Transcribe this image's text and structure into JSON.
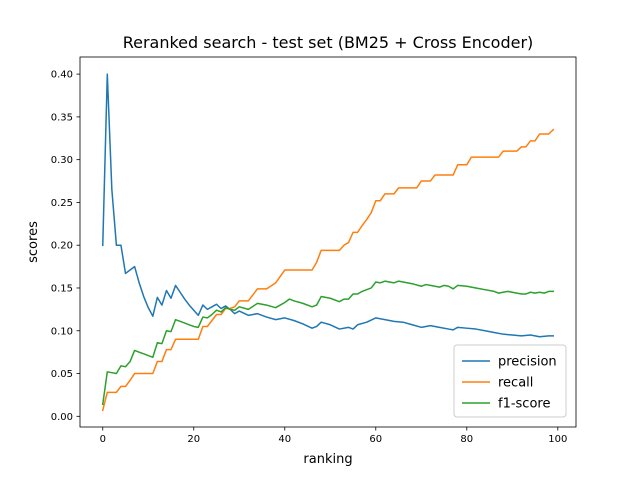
{
  "chart_data": {
    "type": "line",
    "title": "Reranked search - test set (BM25 + Cross Encoder)",
    "xlabel": "ranking",
    "ylabel": "scores",
    "xlim": [
      -5,
      104
    ],
    "ylim": [
      -0.0125,
      0.42
    ],
    "xticks": [
      0,
      20,
      40,
      60,
      80,
      100
    ],
    "xtick_labels": [
      "0",
      "20",
      "40",
      "60",
      "80",
      "100"
    ],
    "yticks": [
      0,
      0.05,
      0.1,
      0.15,
      0.2,
      0.25,
      0.3,
      0.35,
      0.4
    ],
    "ytick_labels": [
      "0.00",
      "0.05",
      "0.10",
      "0.15",
      "0.20",
      "0.25",
      "0.30",
      "0.35",
      "0.40"
    ],
    "grid": false,
    "legend_position": "lower-right",
    "series": [
      {
        "name": "precision",
        "color": "#1f77b4",
        "points": [
          [
            0,
            0.2
          ],
          [
            1,
            0.4
          ],
          [
            2,
            0.265
          ],
          [
            3,
            0.2
          ],
          [
            4,
            0.2
          ],
          [
            5,
            0.167
          ],
          [
            6,
            0.171
          ],
          [
            7,
            0.175
          ],
          [
            8,
            0.156
          ],
          [
            9,
            0.14
          ],
          [
            10,
            0.127
          ],
          [
            11,
            0.117
          ],
          [
            12,
            0.139
          ],
          [
            13,
            0.13
          ],
          [
            14,
            0.147
          ],
          [
            15,
            0.138
          ],
          [
            16,
            0.153
          ],
          [
            17,
            0.145
          ],
          [
            18,
            0.137
          ],
          [
            19,
            0.13
          ],
          [
            20,
            0.124
          ],
          [
            21,
            0.118
          ],
          [
            22,
            0.13
          ],
          [
            23,
            0.125
          ],
          [
            24,
            0.128
          ],
          [
            25,
            0.131
          ],
          [
            26,
            0.126
          ],
          [
            27,
            0.129
          ],
          [
            28,
            0.125
          ],
          [
            29,
            0.12
          ],
          [
            30,
            0.123
          ],
          [
            32,
            0.118
          ],
          [
            34,
            0.12
          ],
          [
            36,
            0.116
          ],
          [
            38,
            0.113
          ],
          [
            40,
            0.115
          ],
          [
            42,
            0.112
          ],
          [
            44,
            0.108
          ],
          [
            46,
            0.103
          ],
          [
            47,
            0.105
          ],
          [
            48,
            0.11
          ],
          [
            50,
            0.107
          ],
          [
            52,
            0.102
          ],
          [
            54,
            0.104
          ],
          [
            55,
            0.102
          ],
          [
            56,
            0.107
          ],
          [
            58,
            0.11
          ],
          [
            60,
            0.115
          ],
          [
            62,
            0.113
          ],
          [
            64,
            0.111
          ],
          [
            66,
            0.11
          ],
          [
            68,
            0.107
          ],
          [
            70,
            0.104
          ],
          [
            72,
            0.106
          ],
          [
            74,
            0.104
          ],
          [
            76,
            0.102
          ],
          [
            77,
            0.101
          ],
          [
            78,
            0.104
          ],
          [
            80,
            0.103
          ],
          [
            82,
            0.102
          ],
          [
            84,
            0.1
          ],
          [
            86,
            0.098
          ],
          [
            88,
            0.096
          ],
          [
            90,
            0.095
          ],
          [
            92,
            0.094
          ],
          [
            94,
            0.095
          ],
          [
            96,
            0.093
          ],
          [
            98,
            0.094
          ],
          [
            99,
            0.094
          ]
        ]
      },
      {
        "name": "recall",
        "color": "#ff7f0e",
        "points": [
          [
            0,
            0.007
          ],
          [
            1,
            0.028
          ],
          [
            3,
            0.028
          ],
          [
            4,
            0.035
          ],
          [
            5,
            0.035
          ],
          [
            6,
            0.042
          ],
          [
            7,
            0.05
          ],
          [
            10,
            0.05
          ],
          [
            11,
            0.05
          ],
          [
            12,
            0.064
          ],
          [
            13,
            0.064
          ],
          [
            14,
            0.078
          ],
          [
            15,
            0.078
          ],
          [
            16,
            0.09
          ],
          [
            17,
            0.09
          ],
          [
            21,
            0.09
          ],
          [
            22,
            0.105
          ],
          [
            23,
            0.105
          ],
          [
            24,
            0.112
          ],
          [
            25,
            0.119
          ],
          [
            26,
            0.119
          ],
          [
            27,
            0.126
          ],
          [
            28,
            0.126
          ],
          [
            29,
            0.128
          ],
          [
            30,
            0.135
          ],
          [
            32,
            0.135
          ],
          [
            34,
            0.149
          ],
          [
            36,
            0.149
          ],
          [
            38,
            0.156
          ],
          [
            40,
            0.171
          ],
          [
            42,
            0.171
          ],
          [
            46,
            0.171
          ],
          [
            47,
            0.18
          ],
          [
            48,
            0.194
          ],
          [
            50,
            0.194
          ],
          [
            52,
            0.194
          ],
          [
            53,
            0.2
          ],
          [
            54,
            0.203
          ],
          [
            55,
            0.215
          ],
          [
            56,
            0.215
          ],
          [
            57,
            0.223
          ],
          [
            58,
            0.23
          ],
          [
            59,
            0.238
          ],
          [
            60,
            0.252
          ],
          [
            61,
            0.252
          ],
          [
            62,
            0.26
          ],
          [
            64,
            0.26
          ],
          [
            65,
            0.267
          ],
          [
            67,
            0.267
          ],
          [
            69,
            0.267
          ],
          [
            70,
            0.275
          ],
          [
            72,
            0.275
          ],
          [
            73,
            0.282
          ],
          [
            75,
            0.282
          ],
          [
            77,
            0.282
          ],
          [
            78,
            0.294
          ],
          [
            80,
            0.294
          ],
          [
            81,
            0.303
          ],
          [
            83,
            0.303
          ],
          [
            85,
            0.303
          ],
          [
            87,
            0.303
          ],
          [
            88,
            0.31
          ],
          [
            90,
            0.31
          ],
          [
            91,
            0.31
          ],
          [
            92,
            0.315
          ],
          [
            93,
            0.315
          ],
          [
            94,
            0.322
          ],
          [
            95,
            0.322
          ],
          [
            96,
            0.33
          ],
          [
            97,
            0.33
          ],
          [
            98,
            0.33
          ],
          [
            99,
            0.335
          ]
        ]
      },
      {
        "name": "f1-score",
        "color": "#2ca02c",
        "points": [
          [
            0,
            0.014
          ],
          [
            1,
            0.052
          ],
          [
            2,
            0.051
          ],
          [
            3,
            0.05
          ],
          [
            4,
            0.059
          ],
          [
            5,
            0.058
          ],
          [
            6,
            0.064
          ],
          [
            7,
            0.077
          ],
          [
            8,
            0.075
          ],
          [
            9,
            0.073
          ],
          [
            10,
            0.071
          ],
          [
            11,
            0.069
          ],
          [
            12,
            0.086
          ],
          [
            13,
            0.085
          ],
          [
            14,
            0.1
          ],
          [
            15,
            0.099
          ],
          [
            16,
            0.113
          ],
          [
            17,
            0.111
          ],
          [
            18,
            0.109
          ],
          [
            19,
            0.107
          ],
          [
            20,
            0.105
          ],
          [
            21,
            0.104
          ],
          [
            22,
            0.116
          ],
          [
            23,
            0.115
          ],
          [
            24,
            0.119
          ],
          [
            25,
            0.124
          ],
          [
            26,
            0.122
          ],
          [
            27,
            0.127
          ],
          [
            28,
            0.125
          ],
          [
            29,
            0.124
          ],
          [
            30,
            0.128
          ],
          [
            32,
            0.125
          ],
          [
            34,
            0.132
          ],
          [
            36,
            0.13
          ],
          [
            38,
            0.127
          ],
          [
            39,
            0.13
          ],
          [
            40,
            0.133
          ],
          [
            41,
            0.137
          ],
          [
            42,
            0.135
          ],
          [
            44,
            0.132
          ],
          [
            46,
            0.128
          ],
          [
            47,
            0.13
          ],
          [
            48,
            0.14
          ],
          [
            50,
            0.138
          ],
          [
            52,
            0.134
          ],
          [
            53,
            0.137
          ],
          [
            54,
            0.137
          ],
          [
            55,
            0.143
          ],
          [
            56,
            0.143
          ],
          [
            57,
            0.146
          ],
          [
            58,
            0.148
          ],
          [
            59,
            0.15
          ],
          [
            60,
            0.157
          ],
          [
            61,
            0.156
          ],
          [
            62,
            0.158
          ],
          [
            64,
            0.156
          ],
          [
            65,
            0.158
          ],
          [
            66,
            0.157
          ],
          [
            68,
            0.155
          ],
          [
            70,
            0.152
          ],
          [
            71,
            0.154
          ],
          [
            72,
            0.153
          ],
          [
            73,
            0.152
          ],
          [
            74,
            0.151
          ],
          [
            75,
            0.153
          ],
          [
            76,
            0.152
          ],
          [
            77,
            0.149
          ],
          [
            78,
            0.153
          ],
          [
            80,
            0.152
          ],
          [
            81,
            0.151
          ],
          [
            82,
            0.15
          ],
          [
            84,
            0.148
          ],
          [
            86,
            0.146
          ],
          [
            87,
            0.144
          ],
          [
            88,
            0.145
          ],
          [
            89,
            0.146
          ],
          [
            90,
            0.145
          ],
          [
            91,
            0.144
          ],
          [
            92,
            0.143
          ],
          [
            93,
            0.143
          ],
          [
            94,
            0.145
          ],
          [
            95,
            0.144
          ],
          [
            96,
            0.145
          ],
          [
            97,
            0.144
          ],
          [
            98,
            0.146
          ],
          [
            99,
            0.146
          ]
        ]
      }
    ]
  }
}
